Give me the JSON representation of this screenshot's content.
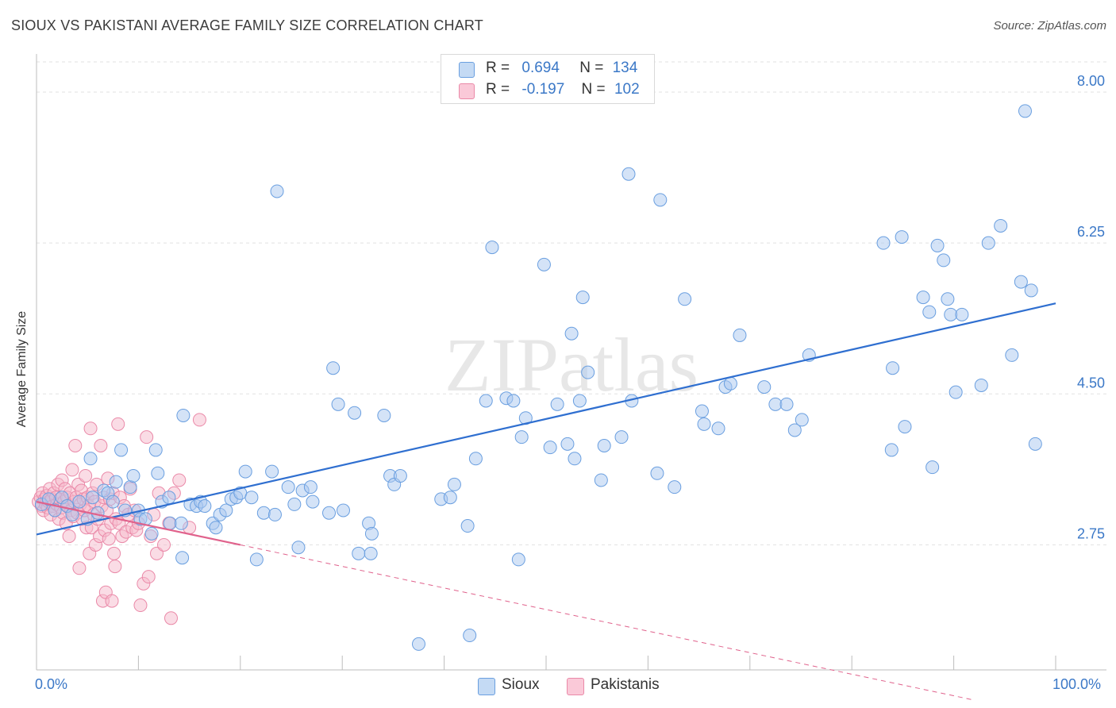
{
  "title": "SIOUX VS PAKISTANI AVERAGE FAMILY SIZE CORRELATION CHART",
  "source": "Source: ZipAtlas.com",
  "watermark": "ZIPatlas",
  "legend": {
    "rows": [
      {
        "r_label": "R =",
        "r_value": "0.694",
        "n_label": "N =",
        "n_value": "134"
      },
      {
        "r_label": "R =",
        "r_value": "-0.197",
        "n_label": "N =",
        "n_value": "102"
      }
    ]
  },
  "bottom_legend": [
    "Sioux",
    "Pakistanis"
  ],
  "x_tick_labels": {
    "left": "0.0%",
    "right": "100.0%"
  },
  "colors": {
    "sioux_fill": "#a9c8ef",
    "sioux_stroke": "#6a9fe0",
    "sioux_line": "#2f6fd0",
    "pak_fill": "#f6b9cc",
    "pak_stroke": "#ea89a8",
    "pak_line": "#e0628c",
    "tick_text": "#3b78c7",
    "grid": "#e2e2e2"
  },
  "chart_data": {
    "type": "scatter",
    "title": "SIOUX VS PAKISTANI AVERAGE FAMILY SIZE CORRELATION CHART",
    "xlabel": "",
    "ylabel": "Average Family Size",
    "xlim": [
      0,
      100
    ],
    "ylim": [
      1.3,
      8.35
    ],
    "y_ticks": [
      2.75,
      4.5,
      6.25,
      8.0
    ],
    "y_tick_labels": [
      "2.75",
      "4.50",
      "6.25",
      "8.00"
    ],
    "x_ticks": [
      0,
      100
    ],
    "x_tick_labels": [
      "0.0%",
      "100.0%"
    ],
    "grid": true,
    "series": [
      {
        "name": "Sioux",
        "r": 0.694,
        "n": 134,
        "trend": {
          "x": [
            0,
            100
          ],
          "y": [
            2.87,
            5.55
          ]
        },
        "points": [
          [
            0.5,
            3.22
          ],
          [
            1.2,
            3.28
          ],
          [
            1.8,
            3.15
          ],
          [
            2.5,
            3.3
          ],
          [
            3.0,
            3.2
          ],
          [
            3.5,
            3.1
          ],
          [
            4.2,
            3.25
          ],
          [
            5.0,
            3.05
          ],
          [
            5.5,
            3.3
          ],
          [
            6.0,
            3.12
          ],
          [
            5.3,
            3.75
          ],
          [
            6.6,
            3.38
          ],
          [
            7.0,
            3.35
          ],
          [
            7.5,
            3.25
          ],
          [
            7.8,
            3.48
          ],
          [
            8.3,
            3.85
          ],
          [
            8.7,
            3.15
          ],
          [
            9.2,
            3.42
          ],
          [
            9.5,
            3.55
          ],
          [
            10.0,
            3.15
          ],
          [
            10.2,
            3.05
          ],
          [
            10.7,
            3.05
          ],
          [
            11.3,
            2.88
          ],
          [
            11.7,
            3.85
          ],
          [
            11.9,
            3.58
          ],
          [
            12.3,
            3.25
          ],
          [
            13.0,
            3.3
          ],
          [
            13.1,
            3.0
          ],
          [
            14.2,
            3.0
          ],
          [
            14.3,
            2.6
          ],
          [
            14.4,
            4.25
          ],
          [
            15.1,
            3.22
          ],
          [
            15.7,
            3.2
          ],
          [
            16.1,
            3.25
          ],
          [
            16.5,
            3.2
          ],
          [
            17.3,
            3.0
          ],
          [
            17.6,
            2.95
          ],
          [
            18.0,
            3.1
          ],
          [
            18.6,
            3.15
          ],
          [
            19.1,
            3.28
          ],
          [
            19.6,
            3.3
          ],
          [
            20.0,
            3.35
          ],
          [
            20.5,
            3.6
          ],
          [
            21.1,
            3.3
          ],
          [
            21.6,
            2.58
          ],
          [
            22.3,
            3.12
          ],
          [
            23.1,
            3.6
          ],
          [
            23.4,
            3.1
          ],
          [
            23.6,
            6.85
          ],
          [
            24.7,
            3.42
          ],
          [
            25.3,
            3.22
          ],
          [
            25.7,
            2.72
          ],
          [
            26.1,
            3.38
          ],
          [
            26.9,
            3.42
          ],
          [
            27.1,
            3.25
          ],
          [
            28.7,
            3.12
          ],
          [
            29.1,
            4.8
          ],
          [
            29.6,
            4.38
          ],
          [
            30.1,
            3.15
          ],
          [
            31.2,
            4.28
          ],
          [
            31.6,
            2.65
          ],
          [
            32.6,
            3.0
          ],
          [
            32.8,
            2.65
          ],
          [
            32.9,
            2.88
          ],
          [
            34.1,
            4.25
          ],
          [
            34.7,
            3.55
          ],
          [
            35.1,
            3.45
          ],
          [
            35.7,
            3.55
          ],
          [
            37.5,
            1.6
          ],
          [
            39.7,
            3.28
          ],
          [
            40.6,
            3.3
          ],
          [
            41.0,
            3.45
          ],
          [
            42.3,
            2.97
          ],
          [
            42.5,
            1.7
          ],
          [
            43.1,
            3.75
          ],
          [
            44.1,
            4.42
          ],
          [
            44.7,
            6.2
          ],
          [
            46.1,
            4.45
          ],
          [
            46.8,
            4.42
          ],
          [
            47.3,
            2.58
          ],
          [
            47.6,
            4.0
          ],
          [
            48.0,
            4.22
          ],
          [
            49.8,
            6.0
          ],
          [
            50.4,
            3.88
          ],
          [
            51.1,
            4.38
          ],
          [
            52.1,
            3.92
          ],
          [
            52.5,
            5.2
          ],
          [
            52.8,
            3.75
          ],
          [
            53.3,
            4.42
          ],
          [
            53.6,
            5.62
          ],
          [
            54.1,
            4.75
          ],
          [
            55.4,
            3.5
          ],
          [
            55.7,
            3.9
          ],
          [
            57.4,
            4.0
          ],
          [
            58.1,
            7.05
          ],
          [
            58.4,
            4.42
          ],
          [
            61.2,
            6.75
          ],
          [
            60.9,
            3.58
          ],
          [
            62.6,
            3.42
          ],
          [
            63.6,
            5.6
          ],
          [
            65.3,
            4.3
          ],
          [
            65.5,
            4.15
          ],
          [
            66.9,
            4.1
          ],
          [
            67.6,
            4.58
          ],
          [
            68.1,
            4.62
          ],
          [
            69.0,
            5.18
          ],
          [
            71.4,
            4.58
          ],
          [
            72.5,
            4.38
          ],
          [
            73.6,
            4.38
          ],
          [
            74.4,
            4.08
          ],
          [
            75.1,
            4.2
          ],
          [
            75.8,
            4.95
          ],
          [
            83.1,
            6.25
          ],
          [
            83.9,
            3.85
          ],
          [
            84.0,
            4.8
          ],
          [
            84.9,
            6.32
          ],
          [
            85.2,
            4.12
          ],
          [
            87.0,
            5.62
          ],
          [
            87.6,
            5.45
          ],
          [
            87.9,
            3.65
          ],
          [
            88.4,
            6.22
          ],
          [
            89.0,
            6.05
          ],
          [
            89.4,
            5.6
          ],
          [
            89.7,
            5.42
          ],
          [
            90.2,
            4.52
          ],
          [
            90.8,
            5.42
          ],
          [
            92.7,
            4.6
          ],
          [
            93.4,
            6.25
          ],
          [
            94.6,
            6.45
          ],
          [
            95.7,
            4.95
          ],
          [
            96.6,
            5.8
          ],
          [
            97.0,
            7.78
          ],
          [
            97.6,
            5.7
          ],
          [
            98.0,
            3.92
          ]
        ]
      },
      {
        "name": "Pakistanis",
        "r": -0.197,
        "n": 102,
        "trend": {
          "x": [
            0,
            20
          ],
          "y": [
            3.25,
            2.75
          ]
        },
        "trend_dashed": {
          "x": [
            20,
            92
          ],
          "y": [
            2.75,
            0.95
          ]
        },
        "points": [
          [
            0.2,
            3.25
          ],
          [
            0.4,
            3.3
          ],
          [
            0.5,
            3.2
          ],
          [
            0.6,
            3.35
          ],
          [
            0.7,
            3.15
          ],
          [
            0.8,
            3.28
          ],
          [
            0.9,
            3.22
          ],
          [
            1.0,
            3.32
          ],
          [
            1.1,
            3.18
          ],
          [
            1.2,
            3.25
          ],
          [
            1.3,
            3.4
          ],
          [
            1.4,
            3.1
          ],
          [
            1.5,
            3.28
          ],
          [
            1.6,
            3.2
          ],
          [
            1.7,
            3.35
          ],
          [
            1.8,
            3.15
          ],
          [
            1.9,
            3.3
          ],
          [
            2.0,
            3.22
          ],
          [
            2.1,
            3.45
          ],
          [
            2.2,
            3.05
          ],
          [
            2.3,
            3.28
          ],
          [
            2.4,
            3.18
          ],
          [
            2.5,
            3.5
          ],
          [
            2.6,
            3.12
          ],
          [
            2.7,
            3.25
          ],
          [
            2.8,
            3.4
          ],
          [
            2.9,
            3.0
          ],
          [
            3.0,
            3.3
          ],
          [
            3.1,
            3.2
          ],
          [
            3.2,
            2.85
          ],
          [
            3.3,
            3.35
          ],
          [
            3.4,
            3.15
          ],
          [
            3.5,
            3.62
          ],
          [
            3.6,
            3.08
          ],
          [
            3.7,
            3.25
          ],
          [
            3.8,
            3.9
          ],
          [
            3.9,
            3.3
          ],
          [
            4.0,
            3.12
          ],
          [
            4.1,
            3.45
          ],
          [
            4.2,
            2.48
          ],
          [
            4.3,
            3.22
          ],
          [
            4.4,
            3.38
          ],
          [
            4.5,
            3.05
          ],
          [
            4.6,
            3.28
          ],
          [
            4.7,
            3.15
          ],
          [
            4.8,
            3.55
          ],
          [
            4.9,
            2.95
          ],
          [
            5.0,
            3.3
          ],
          [
            5.1,
            3.2
          ],
          [
            5.2,
            2.65
          ],
          [
            5.3,
            4.1
          ],
          [
            5.4,
            2.95
          ],
          [
            5.5,
            3.35
          ],
          [
            5.6,
            3.1
          ],
          [
            5.7,
            3.25
          ],
          [
            5.8,
            2.75
          ],
          [
            5.9,
            3.45
          ],
          [
            6.0,
            3.05
          ],
          [
            6.2,
            2.85
          ],
          [
            6.3,
            3.9
          ],
          [
            6.4,
            3.2
          ],
          [
            6.5,
            2.1
          ],
          [
            6.6,
            3.3
          ],
          [
            6.7,
            2.92
          ],
          [
            6.8,
            2.2
          ],
          [
            6.9,
            3.15
          ],
          [
            7.0,
            3.52
          ],
          [
            7.1,
            2.82
          ],
          [
            7.2,
            3.28
          ],
          [
            7.3,
            3.0
          ],
          [
            7.4,
            2.1
          ],
          [
            7.5,
            3.35
          ],
          [
            7.6,
            2.65
          ],
          [
            7.7,
            2.5
          ],
          [
            7.8,
            3.05
          ],
          [
            8.0,
            4.15
          ],
          [
            8.1,
            3.0
          ],
          [
            8.2,
            3.3
          ],
          [
            8.4,
            2.85
          ],
          [
            8.6,
            3.2
          ],
          [
            8.8,
            2.9
          ],
          [
            9.0,
            3.1
          ],
          [
            9.2,
            3.4
          ],
          [
            9.4,
            2.95
          ],
          [
            9.6,
            3.15
          ],
          [
            9.8,
            2.92
          ],
          [
            10.0,
            3.0
          ],
          [
            10.2,
            2.05
          ],
          [
            10.5,
            2.3
          ],
          [
            10.8,
            4.0
          ],
          [
            11.0,
            2.38
          ],
          [
            11.2,
            2.85
          ],
          [
            11.5,
            3.1
          ],
          [
            11.8,
            2.65
          ],
          [
            12.0,
            3.35
          ],
          [
            12.5,
            2.75
          ],
          [
            13.0,
            3.0
          ],
          [
            13.2,
            1.9
          ],
          [
            13.5,
            3.35
          ],
          [
            14.0,
            3.5
          ],
          [
            15.0,
            2.95
          ],
          [
            16.0,
            4.2
          ]
        ]
      }
    ]
  }
}
